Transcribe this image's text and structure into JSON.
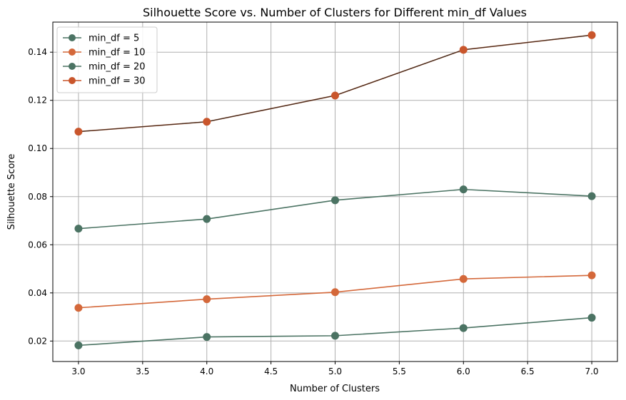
{
  "chart_data": {
    "type": "line",
    "title": "Silhouette Score vs. Number of Clusters for Different min_df Values",
    "xlabel": "Number of Clusters",
    "ylabel": "Silhouette Score",
    "x": [
      3.0,
      4.0,
      5.0,
      6.0,
      7.0
    ],
    "xlim": [
      2.8,
      7.2
    ],
    "ylim": [
      0.0115,
      0.1525
    ],
    "xticks": [
      3.0,
      3.5,
      4.0,
      4.5,
      5.0,
      5.5,
      6.0,
      6.5,
      7.0
    ],
    "yticks": [
      0.02,
      0.04,
      0.06,
      0.08,
      0.1,
      0.12,
      0.14
    ],
    "xtick_labels": [
      "3.0",
      "3.5",
      "4.0",
      "4.5",
      "5.0",
      "5.5",
      "6.0",
      "6.5",
      "7.0"
    ],
    "ytick_labels": [
      "0.02",
      "0.04",
      "0.06",
      "0.08",
      "0.10",
      "0.12",
      "0.14"
    ],
    "grid": true,
    "legend_position": "top-left",
    "series": [
      {
        "name": "min_df = 5",
        "color": "#4b7363",
        "values": [
          0.0667,
          0.0707,
          0.0785,
          0.083,
          0.0802
        ]
      },
      {
        "name": "min_df = 10",
        "color": "#d4683a",
        "values": [
          0.0338,
          0.0374,
          0.0403,
          0.0458,
          0.0473
        ]
      },
      {
        "name": "min_df = 20",
        "color": "#4b7363",
        "values": [
          0.0182,
          0.0217,
          0.0222,
          0.0254,
          0.0297
        ]
      },
      {
        "name": "min_df = 30",
        "color": "#c9562c",
        "values": [
          0.107,
          0.1111,
          0.122,
          0.141,
          0.1471
        ]
      }
    ],
    "overlays": [
      {
        "series": 3,
        "line_color": "#3a2a1e"
      }
    ]
  }
}
